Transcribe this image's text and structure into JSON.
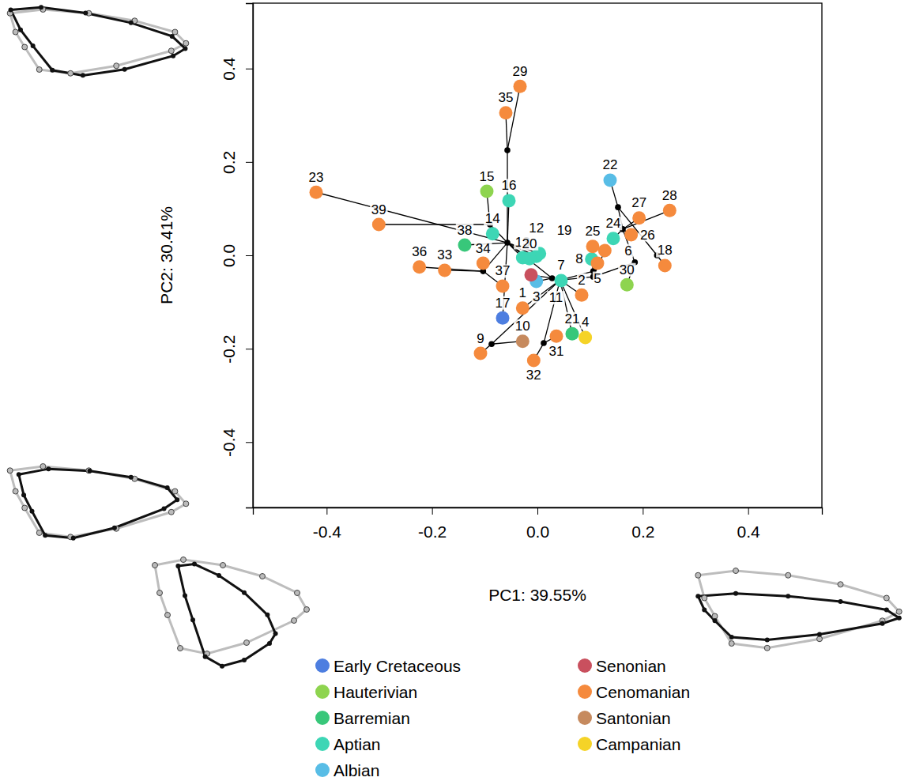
{
  "chart_data": {
    "type": "scatter",
    "x_label": "PC1: 39.55%",
    "y_label": "PC2: 30.41%",
    "xlim": [
      -0.54,
      0.54
    ],
    "ylim": [
      -0.54,
      0.54
    ],
    "xticks": [
      -0.4,
      -0.2,
      {
        "value": 0,
        "label": "0.0"
      },
      0.2,
      0.4
    ],
    "yticks": [
      -0.4,
      -0.2,
      {
        "value": 0,
        "label": "0.0"
      },
      0.2,
      0.4
    ],
    "legend": "bottom",
    "series": [
      {
        "name": "Early Cretaceous",
        "color": "#4d7ee0",
        "labels": [
          "17"
        ],
        "x": [
          -0.066
        ],
        "y": [
          -0.134
        ]
      },
      {
        "name": "Hauterivian",
        "color": "#8ed44f",
        "labels": [
          "15",
          "30"
        ],
        "x": [
          -0.096,
          0.17
        ],
        "y": [
          0.137,
          -0.063
        ]
      },
      {
        "name": "Barremian",
        "color": "#38c77a",
        "labels": [
          "38",
          "21"
        ],
        "x": [
          -0.138,
          0.066
        ],
        "y": [
          0.022,
          -0.168
        ]
      },
      {
        "name": "Aptian",
        "color": "#3dd6b5",
        "labels": [
          "7",
          "8",
          "12",
          "13",
          "14",
          "16",
          "19",
          "20",
          "24"
        ],
        "x": [
          0.045,
          0.103,
          -0.002,
          -0.028,
          -0.085,
          -0.054,
          0.004,
          -0.015,
          0.144
        ],
        "y": [
          -0.054,
          -0.008,
          -0.002,
          -0.005,
          0.046,
          0.117,
          0.004,
          -0.007,
          0.036
        ]
      },
      {
        "name": "Albian",
        "color": "#58bde6",
        "labels": [
          "3",
          "22"
        ],
        "x": [
          -0.002,
          0.138
        ],
        "y": [
          -0.056,
          0.161
        ]
      },
      {
        "name": "Senonian",
        "color": "#c9505e",
        "labels": [
          "11"
        ],
        "x": [
          -0.012
        ],
        "y": [
          -0.042
        ]
      },
      {
        "name": "Cenomanian",
        "color": "#f58a3d",
        "labels": [
          "1",
          "2",
          "5",
          "6",
          "9",
          "18",
          "23",
          "25",
          "26",
          "27",
          "28",
          "29",
          "31",
          "32",
          "33",
          "34",
          "35",
          "36",
          "37",
          "39"
        ],
        "x": [
          -0.028,
          0.084,
          0.114,
          0.128,
          -0.108,
          0.242,
          -0.42,
          0.105,
          0.178,
          0.193,
          0.251,
          -0.033,
          0.036,
          -0.007,
          -0.176,
          -0.103,
          -0.06,
          -0.224,
          -0.066,
          -0.301
        ],
        "y": [
          -0.113,
          -0.085,
          -0.017,
          0.01,
          -0.21,
          -0.022,
          0.135,
          0.019,
          0.044,
          0.08,
          0.096,
          0.362,
          -0.173,
          -0.225,
          -0.032,
          -0.017,
          0.305,
          -0.025,
          -0.066,
          0.066
        ]
      },
      {
        "name": "Santonian",
        "color": "#c68a5e",
        "labels": [
          "10"
        ],
        "x": [
          -0.028
        ],
        "y": [
          -0.184
        ]
      },
      {
        "name": "Campanian",
        "color": "#f5d327",
        "labels": [
          "4"
        ],
        "x": [
          0.091
        ],
        "y": [
          -0.176
        ]
      }
    ],
    "nodes": {
      "x": [
        -0.057,
        -0.057,
        -0.09,
        -0.103,
        0.028,
        0.043,
        -0.087,
        0.012,
        0.106,
        0.106,
        0.153,
        0.162,
        0.185,
        0.227
      ],
      "y": [
        0.027,
        0.225,
        0.066,
        -0.034,
        -0.049,
        -0.053,
        -0.19,
        -0.188,
        -0.034,
        -0.046,
        0.103,
        0.056,
        -0.015,
        0.0
      ]
    },
    "branches": [
      {
        "x": [
          -0.057,
          -0.057
        ],
        "y": [
          0.027,
          0.225
        ]
      },
      {
        "x": [
          -0.057,
          -0.06
        ],
        "y": [
          0.225,
          0.305
        ]
      },
      {
        "x": [
          -0.057,
          -0.033
        ],
        "y": [
          0.225,
          0.362
        ]
      },
      {
        "x": [
          -0.057,
          -0.09
        ],
        "y": [
          0.027,
          0.066
        ]
      },
      {
        "x": [
          -0.09,
          -0.301
        ],
        "y": [
          0.066,
          0.066
        ]
      },
      {
        "x": [
          -0.09,
          -0.096
        ],
        "y": [
          0.066,
          0.137
        ]
      },
      {
        "x": [
          -0.09,
          -0.085
        ],
        "y": [
          0.066,
          0.046
        ]
      },
      {
        "x": [
          -0.057,
          -0.054
        ],
        "y": [
          0.027,
          0.117
        ]
      },
      {
        "x": [
          -0.057,
          -0.42
        ],
        "y": [
          0.027,
          0.135
        ]
      },
      {
        "x": [
          -0.057,
          -0.138
        ],
        "y": [
          0.027,
          0.022
        ]
      },
      {
        "x": [
          -0.057,
          -0.028
        ],
        "y": [
          0.027,
          -0.005
        ]
      },
      {
        "x": [
          -0.057,
          -0.015
        ],
        "y": [
          0.027,
          -0.007
        ]
      },
      {
        "x": [
          -0.057,
          -0.002
        ],
        "y": [
          0.027,
          -0.002
        ]
      },
      {
        "x": [
          -0.057,
          0.004
        ],
        "y": [
          0.027,
          0.004
        ]
      },
      {
        "x": [
          -0.057,
          -0.103
        ],
        "y": [
          0.027,
          -0.034
        ]
      },
      {
        "x": [
          -0.103,
          -0.224
        ],
        "y": [
          -0.034,
          -0.025
        ]
      },
      {
        "x": [
          -0.103,
          -0.176
        ],
        "y": [
          -0.034,
          -0.032
        ]
      },
      {
        "x": [
          -0.103,
          -0.103
        ],
        "y": [
          -0.034,
          -0.017
        ]
      },
      {
        "x": [
          -0.103,
          -0.066
        ],
        "y": [
          -0.034,
          -0.066
        ]
      },
      {
        "x": [
          -0.057,
          -0.066
        ],
        "y": [
          0.027,
          -0.134
        ]
      },
      {
        "x": [
          -0.057,
          0.028
        ],
        "y": [
          0.027,
          -0.049
        ]
      },
      {
        "x": [
          0.028,
          -0.012
        ],
        "y": [
          -0.049,
          -0.042
        ]
      },
      {
        "x": [
          0.028,
          -0.002
        ],
        "y": [
          -0.049,
          -0.056
        ]
      },
      {
        "x": [
          0.028,
          0.043
        ],
        "y": [
          -0.049,
          -0.053
        ]
      },
      {
        "x": [
          0.043,
          0.045
        ],
        "y": [
          -0.053,
          -0.054
        ]
      },
      {
        "x": [
          0.043,
          -0.028
        ],
        "y": [
          -0.053,
          -0.113
        ]
      },
      {
        "x": [
          0.043,
          0.084
        ],
        "y": [
          -0.053,
          -0.085
        ]
      },
      {
        "x": [
          0.043,
          -0.087
        ],
        "y": [
          -0.053,
          -0.19
        ]
      },
      {
        "x": [
          -0.087,
          -0.108
        ],
        "y": [
          -0.19,
          -0.21
        ]
      },
      {
        "x": [
          -0.087,
          -0.028
        ],
        "y": [
          -0.19,
          -0.184
        ]
      },
      {
        "x": [
          0.043,
          0.012
        ],
        "y": [
          -0.053,
          -0.188
        ]
      },
      {
        "x": [
          0.012,
          0.036
        ],
        "y": [
          -0.188,
          -0.173
        ]
      },
      {
        "x": [
          0.012,
          -0.007
        ],
        "y": [
          -0.188,
          -0.225
        ]
      },
      {
        "x": [
          0.043,
          0.066
        ],
        "y": [
          -0.053,
          -0.168
        ]
      },
      {
        "x": [
          0.043,
          0.091
        ],
        "y": [
          -0.053,
          -0.176
        ]
      },
      {
        "x": [
          0.043,
          0.106
        ],
        "y": [
          -0.053,
          -0.034
        ]
      },
      {
        "x": [
          0.106,
          0.103
        ],
        "y": [
          -0.034,
          -0.008
        ]
      },
      {
        "x": [
          0.106,
          0.105
        ],
        "y": [
          -0.034,
          0.019
        ]
      },
      {
        "x": [
          0.043,
          0.106
        ],
        "y": [
          -0.053,
          -0.046
        ]
      },
      {
        "x": [
          0.106,
          0.114
        ],
        "y": [
          -0.046,
          -0.017
        ]
      },
      {
        "x": [
          0.106,
          0.128
        ],
        "y": [
          -0.046,
          0.01
        ]
      },
      {
        "x": [
          0.106,
          0.185
        ],
        "y": [
          -0.046,
          -0.015
        ]
      },
      {
        "x": [
          0.185,
          0.17
        ],
        "y": [
          -0.015,
          -0.063
        ]
      },
      {
        "x": [
          0.185,
          0.162
        ],
        "y": [
          -0.015,
          0.056
        ]
      },
      {
        "x": [
          0.162,
          0.144
        ],
        "y": [
          0.056,
          0.036
        ]
      },
      {
        "x": [
          0.162,
          0.178
        ],
        "y": [
          0.056,
          0.044
        ]
      },
      {
        "x": [
          0.162,
          0.193
        ],
        "y": [
          0.056,
          0.08
        ]
      },
      {
        "x": [
          0.162,
          0.251
        ],
        "y": [
          0.056,
          0.096
        ]
      },
      {
        "x": [
          0.162,
          0.153
        ],
        "y": [
          0.056,
          0.103
        ]
      },
      {
        "x": [
          0.153,
          0.138
        ],
        "y": [
          0.103,
          0.161
        ]
      },
      {
        "x": [
          0.153,
          0.227
        ],
        "y": [
          0.103,
          0.0
        ]
      },
      {
        "x": [
          0.227,
          0.242
        ],
        "y": [
          0.0,
          -0.022
        ]
      }
    ]
  }
}
